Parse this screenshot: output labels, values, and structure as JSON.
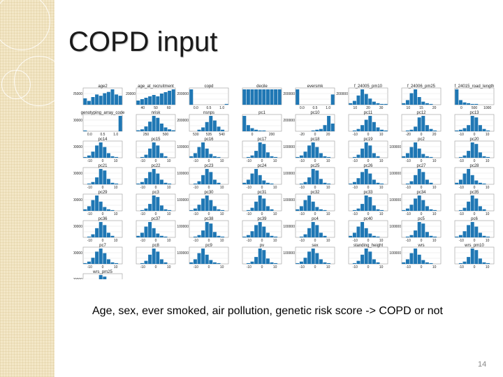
{
  "slide": {
    "title": "COPD input",
    "caption": "Age, sex, ever smoked, air pollution, genetic risk score -> COPD or not",
    "page_number": "14"
  },
  "colors": {
    "sidebar": "#f3e7c7",
    "bar": "#1f77b4",
    "title": "#1a1a1a"
  },
  "chart_data": [
    {
      "type": "bar",
      "title": "age2",
      "values": [
        5,
        3,
        6,
        8,
        7,
        9,
        10,
        12,
        8,
        7
      ],
      "ytick": "25000",
      "xticks": [
        "",
        "",
        ""
      ]
    },
    {
      "type": "bar",
      "title": "age_at_recruitment",
      "values": [
        3,
        4,
        5,
        6,
        7,
        6,
        8,
        9,
        10,
        11
      ],
      "ytick": "20000",
      "xticks": [
        "40",
        "50",
        "60"
      ]
    },
    {
      "type": "bar",
      "title": "copd",
      "values": [
        20,
        0,
        0,
        0,
        0,
        0,
        0,
        0,
        0,
        1
      ],
      "ytick": "200000",
      "xticks": [
        "0.0",
        "0.5",
        "1.0"
      ]
    },
    {
      "type": "bar",
      "title": "decile",
      "values": [
        10,
        10,
        10,
        10,
        10,
        10,
        10,
        10,
        10,
        10
      ],
      "ytick": "",
      "xticks": [
        "",
        "",
        ""
      ]
    },
    {
      "type": "bar",
      "title": "eversmk",
      "values": [
        15,
        0,
        0,
        0,
        0,
        0,
        0,
        0,
        0,
        10
      ],
      "ytick": "200000",
      "xticks": [
        "0.0",
        "0.5",
        "1.0"
      ]
    },
    {
      "type": "bar",
      "title": "f_24005_pm10",
      "values": [
        2,
        5,
        12,
        20,
        14,
        8,
        4,
        2,
        1,
        1
      ],
      "ytick": "200000",
      "xticks": [
        "10",
        "20",
        "30"
      ]
    },
    {
      "type": "bar",
      "title": "f_24006_pm25",
      "values": [
        2,
        6,
        15,
        20,
        10,
        4,
        2,
        1,
        0,
        0
      ],
      "ytick": "",
      "xticks": [
        "10",
        "15",
        "20"
      ]
    },
    {
      "type": "bar",
      "title": "f_24015_road_length",
      "values": [
        20,
        6,
        3,
        2,
        1,
        1,
        0,
        0,
        0,
        0
      ],
      "ytick": "",
      "xticks": [
        "0",
        "500",
        "1000"
      ]
    },
    {
      "type": "bar",
      "title": "genotyping_array_code",
      "values": [
        1,
        0,
        0,
        0,
        0,
        0,
        0,
        0,
        0,
        20
      ],
      "ytick": "200000",
      "xticks": [
        "0.0",
        "0.5",
        "1.0"
      ]
    },
    {
      "type": "bar",
      "title": "nrisk",
      "values": [
        1,
        2,
        5,
        10,
        16,
        14,
        8,
        4,
        2,
        1
      ],
      "ytick": "",
      "xticks": [
        "250",
        "500"
      ]
    },
    {
      "type": "bar",
      "title": "nsnps",
      "values": [
        0,
        0,
        2,
        5,
        12,
        20,
        14,
        6,
        2,
        0
      ],
      "ytick": "200000",
      "xticks": [
        "530",
        "535",
        "540"
      ]
    },
    {
      "type": "bar",
      "title": "pc1",
      "values": [
        20,
        8,
        4,
        2,
        1,
        1,
        0,
        0,
        0,
        0
      ],
      "ytick": "",
      "xticks": [
        "0",
        "200"
      ]
    },
    {
      "type": "bar",
      "title": "pc10",
      "values": [
        0,
        0,
        0,
        0,
        1,
        2,
        3,
        8,
        20,
        10
      ],
      "ytick": "200000",
      "xticks": [
        "-20",
        "0",
        "20"
      ]
    },
    {
      "type": "bar",
      "title": "pc11",
      "values": [
        0,
        1,
        3,
        8,
        15,
        20,
        12,
        5,
        2,
        1
      ],
      "ytick": "",
      "xticks": [
        "-10",
        "0",
        "10"
      ]
    },
    {
      "type": "bar",
      "title": "pc12",
      "values": [
        0,
        1,
        2,
        6,
        18,
        20,
        8,
        3,
        1,
        0
      ],
      "ytick": "",
      "xticks": [
        "-20",
        "0",
        "20"
      ]
    },
    {
      "type": "bar",
      "title": "pc13",
      "values": [
        1,
        2,
        4,
        8,
        20,
        18,
        8,
        3,
        1,
        0
      ],
      "ytick": "",
      "xticks": [
        "-10",
        "0",
        "10"
      ]
    }
  ],
  "grid_labels": [
    [
      "pc14",
      "pc15",
      "pc16",
      "pc17",
      "pc18",
      "pc19",
      "pc2",
      "pc20"
    ],
    [
      "pc21",
      "pc22",
      "pc23",
      "pc24",
      "pc25",
      "pc26",
      "pc27",
      "pc28"
    ],
    [
      "pc29",
      "pc3",
      "pc30",
      "pc31",
      "pc32",
      "pc33",
      "pc34",
      "pc35"
    ],
    [
      "pc36",
      "pc37",
      "pc38",
      "pc39",
      "pc4",
      "pc40",
      "pc5",
      "pc6"
    ],
    [
      "pc7",
      "pc8",
      "pc9",
      "pv",
      "sex",
      "standing_height",
      "wrs",
      "wrs_pm10"
    ],
    [
      "wrs_pm25",
      "",
      "",
      "",
      "",
      "",
      "",
      ""
    ]
  ]
}
